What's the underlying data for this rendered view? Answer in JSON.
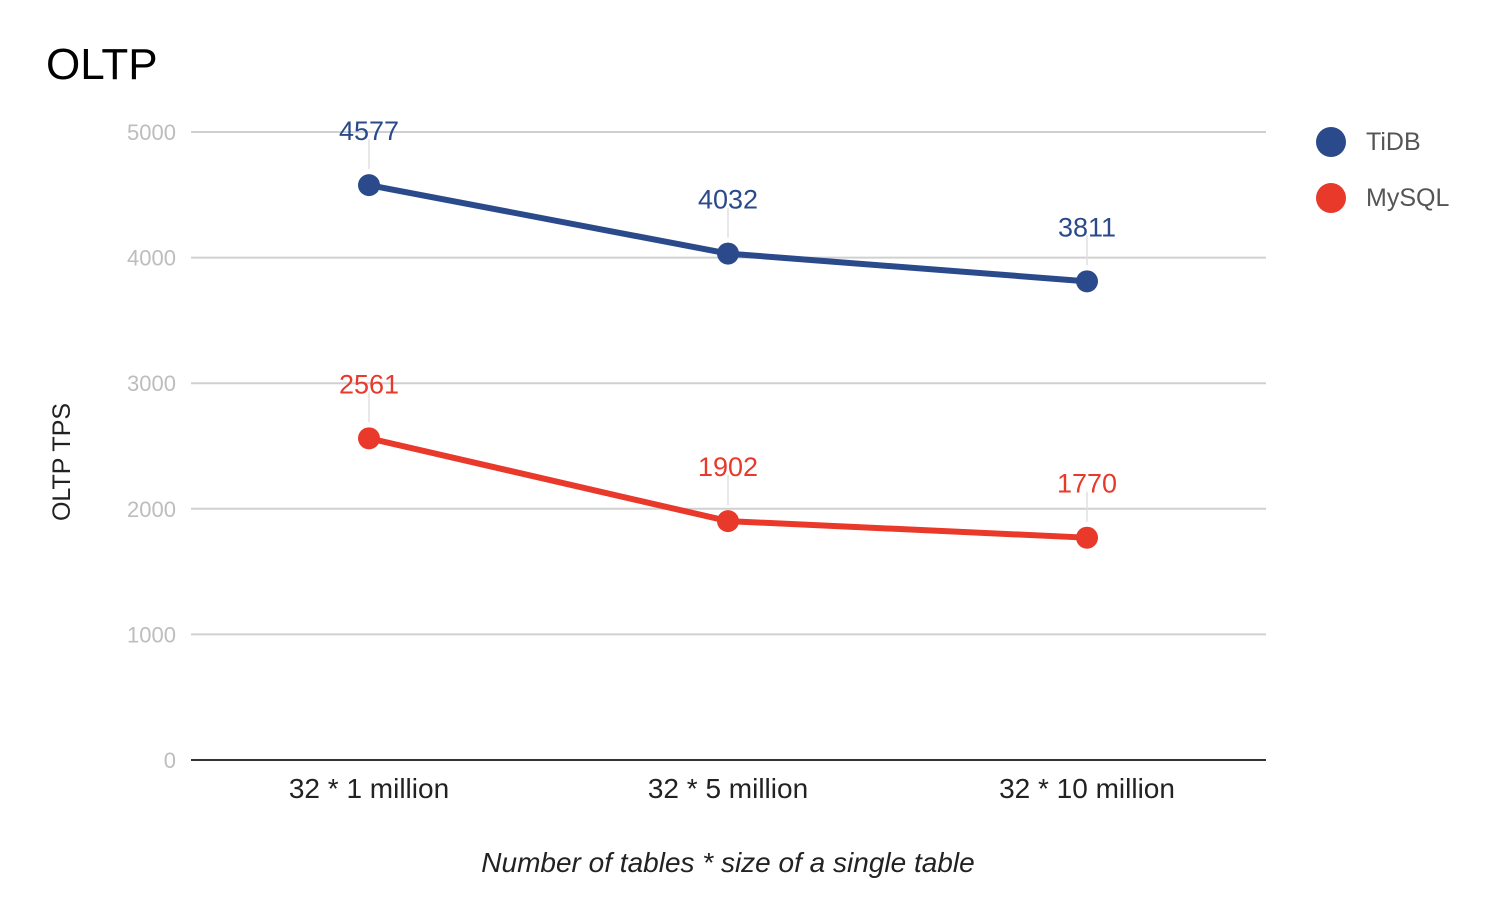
{
  "chart_data": {
    "type": "line",
    "title": "OLTP",
    "xlabel": "Number of tables * size of a single table",
    "ylabel": "OLTP TPS",
    "categories": [
      "32 * 1 million",
      "32 * 5 million",
      "32 * 10 million"
    ],
    "ylim": [
      0,
      5000
    ],
    "yticks": [
      0,
      1000,
      2000,
      3000,
      4000,
      5000
    ],
    "grid": true,
    "legend_position": "right",
    "series": [
      {
        "name": "TiDB",
        "values": [
          4577,
          4032,
          3811
        ],
        "color": "#2a4a8b"
      },
      {
        "name": "MySQL",
        "values": [
          2561,
          1902,
          1770
        ],
        "color": "#e8392a"
      }
    ]
  }
}
